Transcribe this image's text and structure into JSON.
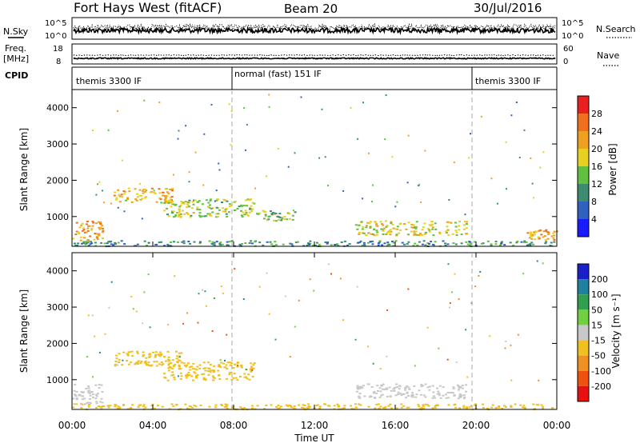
{
  "header": {
    "station": "Fort Hays West (fitACF)",
    "beam": "Beam 20",
    "date": "30/Jul/2016"
  },
  "panels": {
    "nsky_label": "N.Sky",
    "nsearch_label": "N.Search",
    "nsky_ticks": [
      "10^5",
      "10^0"
    ],
    "freq_label_line1": "Freq.",
    "freq_label_line2": "[MHz]",
    "freq_ticks": [
      "18",
      "8"
    ],
    "nave_label": "Nave",
    "nave_ticks": [
      "60",
      "0"
    ],
    "cpid_label": "CPID",
    "cpid_segments": [
      "themis 3300 IF",
      "normal (fast) 151 IF",
      "themis 3300 IF"
    ]
  },
  "axes": {
    "ylabel": "Slant Range [km]",
    "xlabel": "Time UT",
    "y_ticks": [
      "1000",
      "2000",
      "3000",
      "4000"
    ],
    "x_ticks": [
      "00:00",
      "04:00",
      "08:00",
      "12:00",
      "16:00",
      "20:00",
      "00:00"
    ]
  },
  "colorbars": {
    "power": {
      "label": "Power [dB]",
      "ticks": [
        "4",
        "8",
        "12",
        "16",
        "20",
        "24",
        "28"
      ],
      "colors": [
        "#1a1aff",
        "#3060c0",
        "#3c8c70",
        "#60c040",
        "#e8d020",
        "#f0a020",
        "#f07020",
        "#e82020"
      ]
    },
    "velocity": {
      "label": "Velocity [m s⁻¹]",
      "ticks": [
        "200",
        "100",
        "50",
        "15",
        "-15",
        "-50",
        "-100",
        "-200"
      ],
      "colors": [
        "#1a20c8",
        "#2080a0",
        "#30a050",
        "#70d040",
        "#c8c8c8",
        "#f0c020",
        "#f09020",
        "#f05010",
        "#e81010"
      ]
    }
  },
  "chart_data": [
    {
      "type": "heatmap",
      "quantity": "Power [dB]",
      "x_range": [
        "00:00",
        "24:00"
      ],
      "y_range": [
        180,
        4500
      ],
      "echo_regions": [
        {
          "t_start": 0.0,
          "t_end": 1.5,
          "range_km": [
            350,
            900
          ],
          "power_db": 22
        },
        {
          "t_start": 2.0,
          "t_end": 5.0,
          "range_km": [
            1400,
            1800
          ],
          "power_db": 20
        },
        {
          "t_start": 4.5,
          "t_end": 9.0,
          "range_km": [
            1000,
            1500
          ],
          "power_db": 16
        },
        {
          "t_start": 9.0,
          "t_end": 11.0,
          "range_km": [
            900,
            1200
          ],
          "power_db": 14
        },
        {
          "t_start": 14.0,
          "t_end": 19.5,
          "range_km": [
            500,
            900
          ],
          "power_db": 18
        },
        {
          "t_start": 22.5,
          "t_end": 24.0,
          "range_km": [
            350,
            650
          ],
          "power_db": 22
        },
        {
          "t_start": 0.0,
          "t_end": 24.0,
          "range_km": [
            200,
            350
          ],
          "power_db": 10
        }
      ]
    },
    {
      "type": "heatmap",
      "quantity": "Velocity [m s-1]",
      "x_range": [
        "00:00",
        "24:00"
      ],
      "y_range": [
        180,
        4500
      ],
      "echo_regions": [
        {
          "t_start": 0.0,
          "t_end": 1.5,
          "range_km": [
            350,
            900
          ],
          "velocity": 0
        },
        {
          "t_start": 2.0,
          "t_end": 5.5,
          "range_km": [
            1400,
            1800
          ],
          "velocity": -40
        },
        {
          "t_start": 4.5,
          "t_end": 9.0,
          "range_km": [
            1000,
            1500
          ],
          "velocity": -20
        },
        {
          "t_start": 14.0,
          "t_end": 19.5,
          "range_km": [
            500,
            900
          ],
          "velocity": 0
        },
        {
          "t_start": 0.0,
          "t_end": 24.0,
          "range_km": [
            200,
            350
          ],
          "velocity": -30
        }
      ]
    }
  ]
}
